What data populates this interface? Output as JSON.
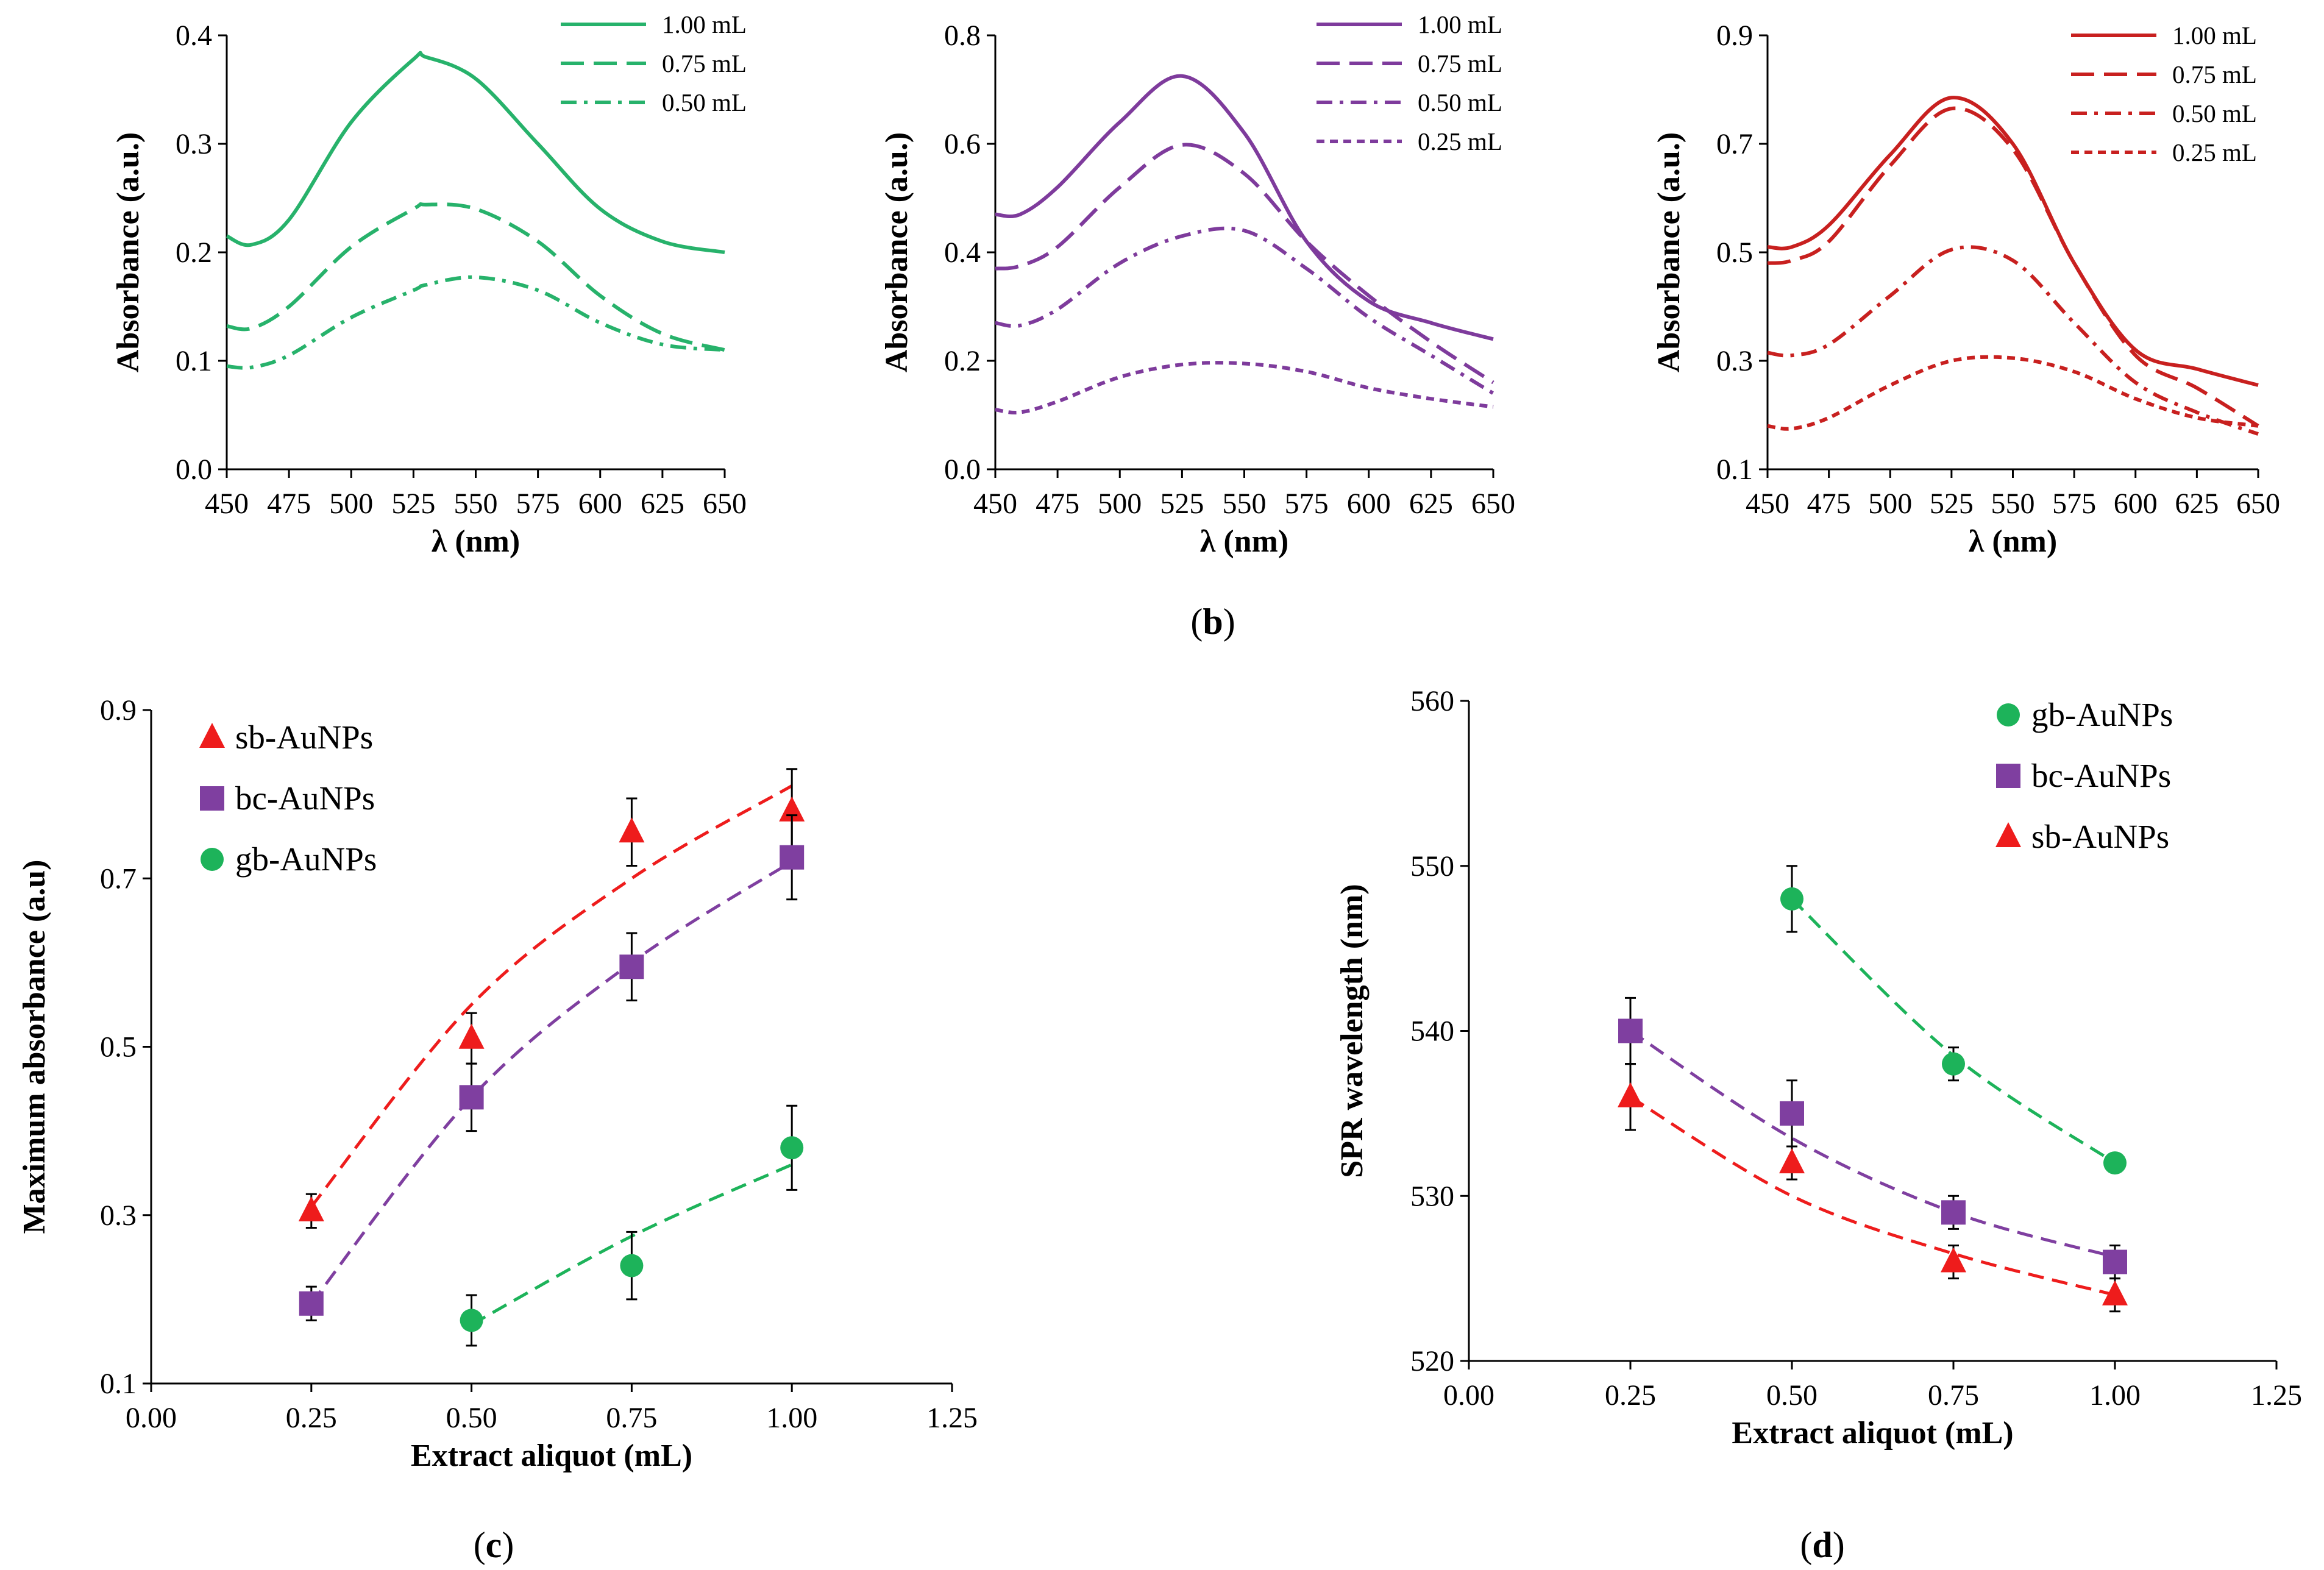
{
  "figure": {
    "panel_b_label": {
      "open": "(",
      "letter": "b",
      "close": ")"
    },
    "panel_c_label": {
      "open": "(",
      "letter": "c",
      "close": ")"
    },
    "panel_d_label": {
      "open": "(",
      "letter": "d",
      "close": ")"
    }
  },
  "chart_data": [
    {
      "id": "b1",
      "type": "line",
      "xlabel": "λ (nm)",
      "ylabel": "Absorbance (a.u.)",
      "xlim": [
        450,
        650
      ],
      "ylim": [
        0.0,
        0.4
      ],
      "xticks": [
        450,
        475,
        500,
        525,
        550,
        575,
        600,
        625,
        650
      ],
      "yticks": [
        0.0,
        0.1,
        0.2,
        0.3,
        0.4
      ],
      "ytick_labels": [
        "0.0",
        "0.1",
        "0.2",
        "0.3",
        "0.4"
      ],
      "color": "#27b26b",
      "x": [
        450,
        460,
        475,
        500,
        525,
        530,
        550,
        575,
        600,
        625,
        650
      ],
      "series": [
        {
          "name": "1.00 mL",
          "dash": "solid",
          "values": [
            0.215,
            0.207,
            0.23,
            0.32,
            0.378,
            0.38,
            0.36,
            0.3,
            0.24,
            0.21,
            0.2
          ]
        },
        {
          "name": "0.75 mL",
          "dash": "dash",
          "values": [
            0.132,
            0.13,
            0.15,
            0.205,
            0.24,
            0.244,
            0.24,
            0.21,
            0.16,
            0.125,
            0.11
          ]
        },
        {
          "name": "0.50 mL",
          "dash": "dashdot",
          "values": [
            0.095,
            0.094,
            0.105,
            0.14,
            0.165,
            0.17,
            0.177,
            0.165,
            0.135,
            0.115,
            0.11
          ]
        }
      ]
    },
    {
      "id": "b2",
      "type": "line",
      "xlabel": "λ (nm)",
      "ylabel": "Absorbance (a.u.)",
      "xlim": [
        450,
        650
      ],
      "ylim": [
        0.0,
        0.8
      ],
      "xticks": [
        450,
        475,
        500,
        525,
        550,
        575,
        600,
        625,
        650
      ],
      "yticks": [
        0.0,
        0.2,
        0.4,
        0.6,
        0.8
      ],
      "ytick_labels": [
        "0.0",
        "0.2",
        "0.4",
        "0.6",
        "0.8"
      ],
      "color": "#7e3b9c",
      "x": [
        450,
        460,
        475,
        500,
        525,
        550,
        575,
        600,
        625,
        650
      ],
      "series": [
        {
          "name": "1.00 mL",
          "dash": "solid",
          "values": [
            0.47,
            0.47,
            0.52,
            0.64,
            0.725,
            0.62,
            0.42,
            0.31,
            0.27,
            0.24
          ]
        },
        {
          "name": "0.75 mL",
          "dash": "dash",
          "values": [
            0.37,
            0.375,
            0.41,
            0.52,
            0.598,
            0.545,
            0.42,
            0.32,
            0.235,
            0.16
          ]
        },
        {
          "name": "0.50 mL",
          "dash": "dashdot",
          "values": [
            0.27,
            0.265,
            0.295,
            0.38,
            0.43,
            0.44,
            0.37,
            0.28,
            0.21,
            0.14
          ]
        },
        {
          "name": "0.25 mL",
          "dash": "shortdash",
          "values": [
            0.11,
            0.105,
            0.125,
            0.17,
            0.193,
            0.195,
            0.18,
            0.15,
            0.13,
            0.115
          ]
        }
      ]
    },
    {
      "id": "b3",
      "type": "line",
      "xlabel": "λ (nm)",
      "ylabel": "Absorbance (a.u.)",
      "xlim": [
        450,
        650
      ],
      "ylim": [
        0.1,
        0.9
      ],
      "xticks": [
        450,
        475,
        500,
        525,
        550,
        575,
        600,
        625,
        650
      ],
      "yticks": [
        0.1,
        0.3,
        0.5,
        0.7,
        0.9
      ],
      "ytick_labels": [
        "0.1",
        "0.3",
        "0.5",
        "0.7",
        "0.9"
      ],
      "color": "#c8201f",
      "x": [
        450,
        460,
        475,
        500,
        525,
        550,
        575,
        600,
        625,
        650
      ],
      "series": [
        {
          "name": "1.00 mL",
          "dash": "solid",
          "values": [
            0.51,
            0.51,
            0.55,
            0.68,
            0.785,
            0.7,
            0.48,
            0.32,
            0.285,
            0.255
          ]
        },
        {
          "name": "0.75 mL",
          "dash": "dash",
          "values": [
            0.48,
            0.485,
            0.52,
            0.66,
            0.765,
            0.69,
            0.48,
            0.31,
            0.25,
            0.18
          ]
        },
        {
          "name": "0.50 mL",
          "dash": "dashdot",
          "values": [
            0.315,
            0.31,
            0.33,
            0.42,
            0.505,
            0.485,
            0.37,
            0.26,
            0.205,
            0.165
          ]
        },
        {
          "name": "0.25 mL",
          "dash": "shortdash",
          "values": [
            0.18,
            0.175,
            0.195,
            0.255,
            0.3,
            0.305,
            0.28,
            0.23,
            0.195,
            0.18
          ]
        }
      ]
    },
    {
      "id": "c",
      "type": "scatter",
      "xlabel": "Extract aliquot (mL)",
      "ylabel": "Maximum absorbance (a.u)",
      "xlim": [
        0.0,
        1.25
      ],
      "ylim": [
        0.1,
        0.9
      ],
      "xticks": [
        0.0,
        0.25,
        0.5,
        0.75,
        1.0,
        1.25
      ],
      "xtick_labels": [
        "0.00",
        "0.25",
        "0.50",
        "0.75",
        "1.00",
        "1.25"
      ],
      "yticks": [
        0.1,
        0.3,
        0.5,
        0.7,
        0.9
      ],
      "ytick_labels": [
        "0.1",
        "0.3",
        "0.5",
        "0.7",
        "0.9"
      ],
      "series": [
        {
          "name": "sb-AuNPs",
          "marker": "triangle",
          "color": "#ee1c1c",
          "x": [
            0.25,
            0.5,
            0.75,
            1.0
          ],
          "values": [
            0.305,
            0.51,
            0.755,
            0.78
          ],
          "errors": [
            0.02,
            0.03,
            0.04,
            0.05
          ],
          "trend": [
            [
              0.25,
              0.31
            ],
            [
              0.5,
              0.55
            ],
            [
              0.75,
              0.7
            ],
            [
              1.0,
              0.81
            ]
          ]
        },
        {
          "name": "bc-AuNPs",
          "marker": "square",
          "color": "#7f3fa0",
          "x": [
            0.25,
            0.5,
            0.75,
            1.0
          ],
          "values": [
            0.195,
            0.44,
            0.595,
            0.725
          ],
          "errors": [
            0.02,
            0.04,
            0.04,
            0.05
          ],
          "trend": [
            [
              0.25,
              0.195
            ],
            [
              0.5,
              0.44
            ],
            [
              0.75,
              0.6
            ],
            [
              1.0,
              0.72
            ]
          ]
        },
        {
          "name": "gb-AuNPs",
          "marker": "circle",
          "color": "#1db35a",
          "x": [
            0.5,
            0.75,
            1.0
          ],
          "values": [
            0.175,
            0.24,
            0.38
          ],
          "errors": [
            0.03,
            0.04,
            0.05
          ],
          "trend": [
            [
              0.5,
              0.17
            ],
            [
              0.75,
              0.275
            ],
            [
              1.0,
              0.36
            ]
          ]
        }
      ]
    },
    {
      "id": "d",
      "type": "scatter",
      "xlabel": "Extract aliquot (mL)",
      "ylabel": "SPR wavelength (nm)",
      "xlim": [
        0.0,
        1.25
      ],
      "ylim": [
        520,
        560
      ],
      "xticks": [
        0.0,
        0.25,
        0.5,
        0.75,
        1.0,
        1.25
      ],
      "xtick_labels": [
        "0.00",
        "0.25",
        "0.50",
        "0.75",
        "1.00",
        "1.25"
      ],
      "yticks": [
        520,
        530,
        540,
        550,
        560
      ],
      "ytick_labels": [
        "520",
        "530",
        "540",
        "550",
        "560"
      ],
      "series": [
        {
          "name": "gb-AuNPs",
          "marker": "circle",
          "color": "#1db35a",
          "x": [
            0.5,
            0.75,
            1.0
          ],
          "values": [
            548,
            538,
            532
          ],
          "errors": [
            2,
            1,
            0.5
          ],
          "trend": [
            [
              0.5,
              548
            ],
            [
              0.75,
              538.5
            ],
            [
              1.0,
              532
            ]
          ]
        },
        {
          "name": "bc-AuNPs",
          "marker": "square",
          "color": "#7f3fa0",
          "x": [
            0.25,
            0.5,
            0.75,
            1.0
          ],
          "values": [
            540,
            535,
            529,
            526
          ],
          "errors": [
            2,
            2,
            1,
            1
          ],
          "trend": [
            [
              0.25,
              540
            ],
            [
              0.5,
              533.5
            ],
            [
              0.75,
              529
            ],
            [
              1.0,
              526.3
            ]
          ]
        },
        {
          "name": "sb-AuNPs",
          "marker": "triangle",
          "color": "#ee1c1c",
          "x": [
            0.25,
            0.5,
            0.75,
            1.0
          ],
          "values": [
            536,
            532,
            526,
            524
          ],
          "errors": [
            2,
            1,
            1,
            1
          ],
          "trend": [
            [
              0.25,
              536
            ],
            [
              0.5,
              530
            ],
            [
              0.75,
              526.5
            ],
            [
              1.0,
              524
            ]
          ]
        }
      ]
    }
  ]
}
